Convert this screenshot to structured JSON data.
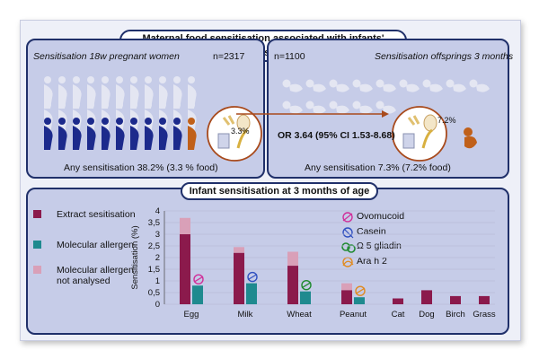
{
  "top": {
    "title": "Maternal food sensitisation associated with infants' sensitisation",
    "left_heading": "Sensitisation 18w pregnant women",
    "left_n": "n=2317",
    "left_pct_label": "3.3%",
    "left_footer": "Any sensitisation 38.2% (3.3 % food)",
    "right_n": "n=1100",
    "right_heading": "Sensitisation offsprings 3 months",
    "right_pct_label": "7.2%",
    "right_footer": "Any sensitisation 7.3% (7.2% food)",
    "odds_ratio": "OR 3.64 (95% CI 1.53-8.68)"
  },
  "bottom": {
    "title": "Infant sensitisation at 3 months of age",
    "legend": [
      {
        "label": "Extract sesitisation",
        "color": "#8b1a4c"
      },
      {
        "label": "Molecular allergen",
        "color": "#1f8a8f"
      },
      {
        "label": "Molecular allergen",
        "label2": "not analysed",
        "color": "#d9a0b8"
      }
    ],
    "component_legend": [
      {
        "label": "Ovomucoid",
        "icon": "ovomucoid-icon",
        "color": "#d0309a"
      },
      {
        "label": "Casein",
        "icon": "casein-icon",
        "color": "#3050c0"
      },
      {
        "label": "Ω 5 gliadin",
        "icon": "gliadin-icon",
        "color": "#208a30"
      },
      {
        "label": "Ara h 2",
        "icon": "ara-h2-icon",
        "color": "#e08a20"
      }
    ]
  },
  "colors": {
    "extract": "#8b1a4c",
    "molecular": "#1f8a8f",
    "not_analysed": "#d9a0b8",
    "border": "#20306a",
    "arrow": "#a84a1c"
  },
  "chart_data": {
    "type": "bar",
    "ylabel": "Sensitisation (%)",
    "ylim": [
      0,
      4
    ],
    "yticks": [
      "0",
      "0,5",
      "1",
      "1,5",
      "2",
      "2,5",
      "3",
      "3,5",
      "4"
    ],
    "categories": [
      "Egg",
      "Milk",
      "Wheat",
      "Peanut",
      "Cat",
      "Dog",
      "Birch",
      "Grass"
    ],
    "series": [
      {
        "name": "Extract sesitisation",
        "values": [
          3.0,
          2.2,
          1.65,
          0.6,
          0.25,
          0.6,
          0.35,
          0.35
        ]
      },
      {
        "name": "Molecular allergen",
        "values": [
          0.8,
          0.9,
          0.55,
          0.3,
          null,
          null,
          null,
          null
        ]
      },
      {
        "name": "Molecular allergen not analysed",
        "values": [
          0.7,
          0.25,
          0.6,
          0.3,
          null,
          null,
          null,
          null
        ]
      }
    ]
  }
}
